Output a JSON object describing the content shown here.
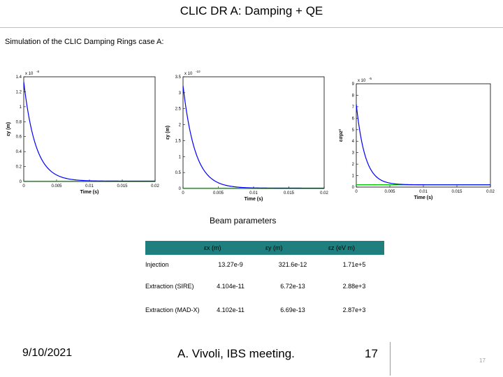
{
  "title": "CLIC DR A: Damping + QE",
  "subtitle": "Simulation of the CLIC Damping Rings case A:",
  "charts": [
    {
      "type": "line",
      "ylabel": "εy (m)",
      "xlabel": "Time (s)",
      "yexp": "x 10",
      "yexp_power": "-8",
      "xlim": [
        0,
        0.02
      ],
      "ylim": [
        0,
        1.4
      ],
      "xticks": [
        "0",
        "0.005",
        "0.01",
        "0.015",
        "0.02"
      ],
      "yticks": [
        "0",
        "0.2",
        "0.4",
        "0.6",
        "0.8",
        "1",
        "1.2",
        "1.4"
      ],
      "series_color": "#0000ff",
      "baseline_color": "#00c000",
      "y0": 1.33,
      "tau": 0.0018,
      "baseline": 0.005
    },
    {
      "type": "line",
      "ylabel": "εy (m)",
      "xlabel": "Time (s)",
      "yexp": "x 10",
      "yexp_power": "-10",
      "xlim": [
        0,
        0.02
      ],
      "ylim": [
        0,
        3.5
      ],
      "xticks": [
        "0",
        "0.005",
        "0.01",
        "0.015",
        "0.02"
      ],
      "yticks": [
        "0",
        "0.5",
        "1",
        "1.5",
        "2",
        "2.5",
        "3",
        "3.5"
      ],
      "series_color": "#0000ff",
      "baseline_color": "#00c000",
      "y0": 3.22,
      "tau": 0.0017,
      "baseline": 0.01
    },
    {
      "type": "line",
      "ylabel": "εσpz²",
      "xlabel": "Time (s)",
      "yexp": "x 10",
      "yexp_power": "-5",
      "xlim": [
        0,
        0.02
      ],
      "ylim": [
        0,
        9
      ],
      "xticks": [
        "0",
        "0.005",
        "0.01",
        "0.015",
        "0.02"
      ],
      "yticks": [
        "0",
        "1",
        "2",
        "3",
        "4",
        "5",
        "6",
        "7",
        "8",
        "9"
      ],
      "series_color": "#0000ff",
      "baseline_color": "#00c000",
      "y0": 7.2,
      "tau": 0.0013,
      "baseline": 0.2
    }
  ],
  "beam_title": "Beam parameters",
  "table": {
    "headers": [
      "",
      "εx (m)",
      "εy (m)",
      "εz (eV m)"
    ],
    "rows": [
      {
        "label": "Injection",
        "values": [
          "13.27e-9",
          "321.6e-12",
          "1.71e+5"
        ]
      },
      {
        "label": "Extraction (SIRE)",
        "values": [
          "4.104e-11",
          "6.72e-13",
          "2.88e+3"
        ]
      },
      {
        "label": "Extraction (MAD-X)",
        "values": [
          "4.102e-11",
          "6.69e-13",
          "2.87e+3"
        ]
      }
    ]
  },
  "footer": {
    "date": "9/10/2021",
    "author": "A. Vivoli, IBS meeting.",
    "slide_number": "17",
    "corner_number": "17"
  }
}
